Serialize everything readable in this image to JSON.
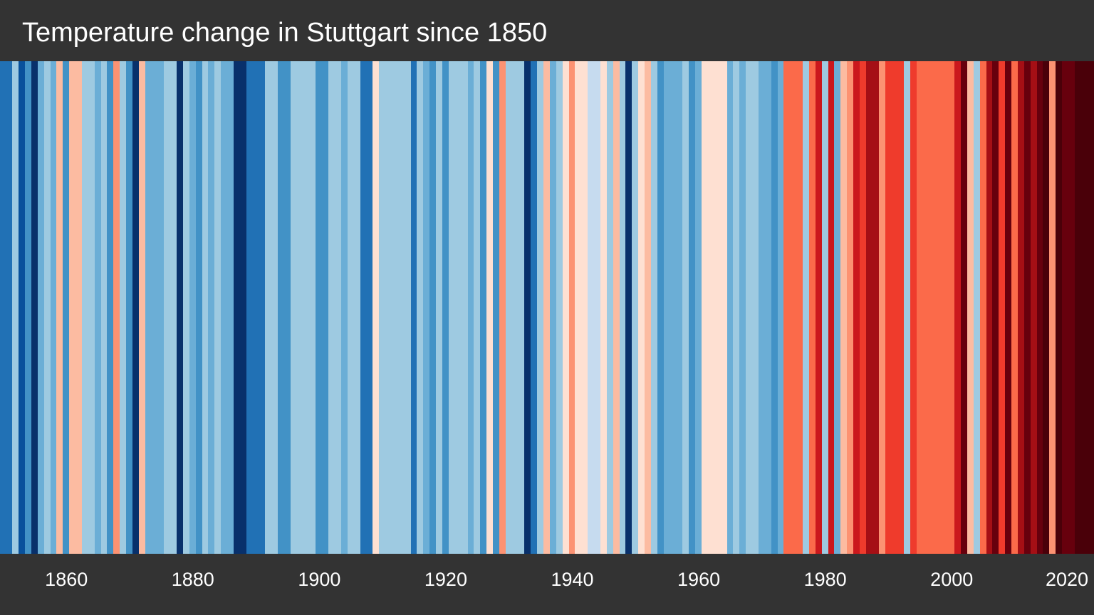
{
  "chart_data": {
    "type": "heatmap",
    "title": "Temperature change in Stuttgart since 1850",
    "start_year": 1850,
    "end_year": 2022,
    "x_ticks": [
      "1860",
      "1880",
      "1900",
      "1920",
      "1940",
      "1960",
      "1980",
      "2000",
      "2020"
    ],
    "color_levels": [
      "#08306b",
      "#08519c",
      "#2171b5",
      "#4292c6",
      "#6baed6",
      "#9ecae1",
      "#c6dbef",
      "#deebf7",
      "#fee0d2",
      "#fcbba1",
      "#fc9272",
      "#fb6a4a",
      "#ef3b2c",
      "#cb181d",
      "#a50f15",
      "#67000d",
      "#4a0009"
    ],
    "values": [
      -0.55,
      -0.55,
      -0.25,
      -0.75,
      -0.45,
      -0.85,
      -0.35,
      -0.2,
      -0.4,
      0.2,
      -0.5,
      0.25,
      0.25,
      -0.2,
      -0.2,
      -0.35,
      -0.3,
      -0.45,
      0.3,
      -0.2,
      -0.45,
      -0.85,
      0.2,
      -0.4,
      -0.4,
      -0.35,
      -0.2,
      -0.3,
      -0.85,
      -0.25,
      -0.35,
      -0.45,
      -0.3,
      -0.35,
      -0.2,
      -0.4,
      -0.35,
      -0.85,
      -0.85,
      -0.55,
      -0.55,
      -0.55,
      -0.3,
      -0.3,
      -0.5,
      -0.5,
      -0.2,
      -0.25,
      -0.3,
      -0.2,
      -0.5,
      -0.5,
      -0.3,
      -0.2,
      -0.35,
      -0.25,
      -0.3,
      -0.55,
      -0.55,
      0.1,
      -0.25,
      -0.3,
      -0.3,
      -0.3,
      -0.3,
      -0.55,
      -0.2,
      -0.4,
      -0.45,
      -0.25,
      -0.5,
      -0.25,
      -0.3,
      -0.2,
      -0.4,
      -0.25,
      -0.45,
      0.1,
      -0.5,
      0.3,
      -0.2,
      -0.2,
      -0.2,
      -0.85,
      -0.55,
      -0.2,
      0.2,
      -0.35,
      -0.25,
      0.1,
      0.3,
      0.1,
      0.1,
      -0.15,
      -0.15,
      0.1,
      -0.2,
      0.2,
      -0.2,
      -0.85,
      -0.2,
      0.1,
      0.2,
      -0.2,
      -0.5,
      -0.4,
      -0.35,
      -0.4,
      -0.25,
      -0.45,
      -0.4,
      0.1,
      0.1,
      0.1,
      0.1,
      -0.4,
      -0.2,
      -0.4,
      -0.3,
      -0.2,
      -0.4,
      -0.4,
      -0.5,
      -0.4,
      0.4,
      0.4,
      0.4,
      -0.2,
      0.5,
      0.7,
      -0.2,
      0.7,
      -0.4,
      0.2,
      0.3,
      0.7,
      0.6,
      0.8,
      0.8,
      0.3,
      0.6,
      0.6,
      0.6,
      -0.2,
      0.6,
      0.5,
      0.4,
      0.4,
      0.5,
      0.5,
      0.5,
      0.7,
      0.9,
      0.2,
      -0.2,
      0.5,
      0.8,
      0.9,
      0.6,
      0.9,
      0.5,
      0.8,
      0.9,
      0.8,
      0.9,
      1.0,
      0.3,
      1.0,
      0.9,
      0.9,
      1.0,
      1.0,
      1.0
    ]
  }
}
